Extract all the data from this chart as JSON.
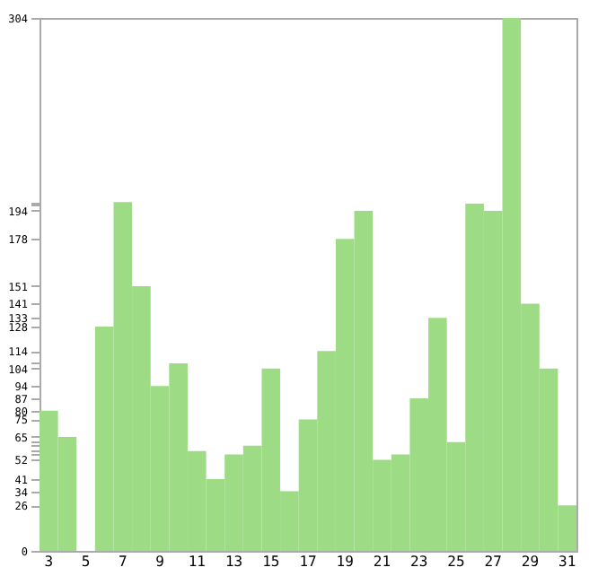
{
  "chart_data": {
    "type": "bar",
    "categories": [
      "3",
      null,
      "5",
      null,
      "7",
      null,
      "9",
      null,
      "11",
      null,
      "13",
      null,
      "15",
      null,
      "17",
      null,
      "19",
      null,
      "21",
      null,
      "23",
      null,
      "25",
      null,
      "27",
      null,
      "29",
      null,
      "31"
    ],
    "values": [
      80,
      65,
      0,
      128,
      199,
      151,
      94,
      107,
      57,
      41,
      55,
      60,
      104,
      34,
      75,
      114,
      178,
      194,
      52,
      55,
      87,
      133,
      62,
      198,
      194,
      304,
      141,
      104,
      26
    ],
    "color": "#9ddc85",
    "ylim": [
      0,
      304
    ],
    "yticks": [
      0,
      26,
      34,
      41,
      52,
      {
        "value": 55,
        "label": null
      },
      {
        "value": 57,
        "label": null
      },
      {
        "value": 60,
        "label": null
      },
      {
        "value": 62,
        "label": null
      },
      65,
      75,
      80,
      87,
      94,
      104,
      {
        "value": 107,
        "label": null
      },
      114,
      128,
      133,
      141,
      151,
      178,
      194,
      {
        "value": 198,
        "label": null
      },
      {
        "value": 199,
        "label": null
      },
      304
    ],
    "grid": false
  }
}
